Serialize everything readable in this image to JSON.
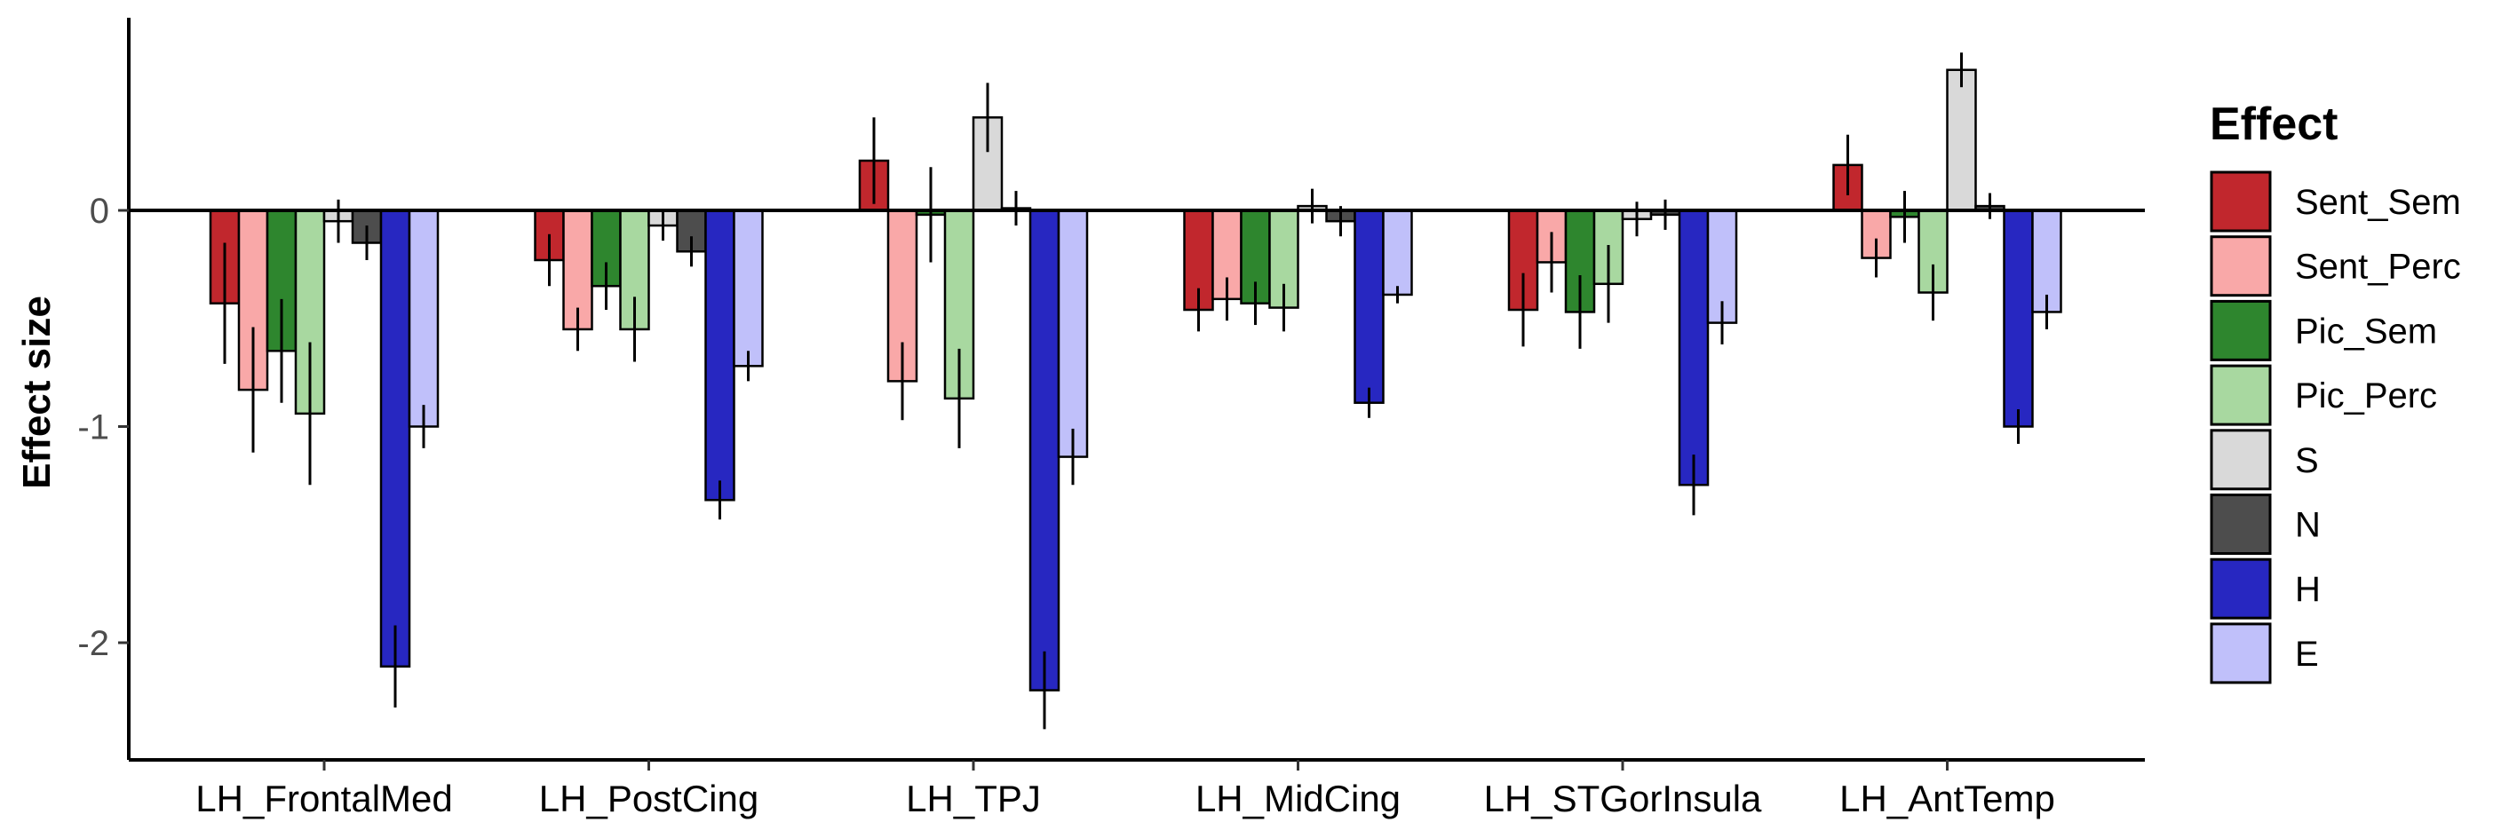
{
  "chart_data": {
    "type": "bar",
    "ylabel": "Effect size",
    "ylim": [
      -2.55,
      0.9
    ],
    "yticks": [
      0,
      -1,
      -2
    ],
    "ytick_labels": [
      "0",
      "-1",
      "-2"
    ],
    "categories": [
      "LH_FrontalMed",
      "LH_PostCing",
      "LH_TPJ",
      "LH_MidCing",
      "LH_STGorInsula",
      "LH_AntTemp"
    ],
    "legend_title": "Effect",
    "legend_position": "right",
    "grid": false,
    "series": [
      {
        "name": "Sent_Sem",
        "color": "#c1272d",
        "values": [
          -0.43,
          -0.23,
          0.23,
          -0.46,
          -0.46,
          0.21
        ],
        "errors": [
          0.28,
          0.12,
          0.2,
          0.1,
          0.17,
          0.14
        ]
      },
      {
        "name": "Sent_Perc",
        "color": "#f9a8a8",
        "values": [
          -0.83,
          -0.55,
          -0.79,
          -0.41,
          -0.24,
          -0.22
        ],
        "errors": [
          0.29,
          0.1,
          0.18,
          0.1,
          0.14,
          0.09
        ]
      },
      {
        "name": "Pic_Sem",
        "color": "#2e862e",
        "values": [
          -0.65,
          -0.35,
          -0.02,
          -0.43,
          -0.47,
          -0.03
        ],
        "errors": [
          0.24,
          0.11,
          0.22,
          0.1,
          0.17,
          0.12
        ]
      },
      {
        "name": "Pic_Perc",
        "color": "#a8d8a0",
        "values": [
          -0.94,
          -0.55,
          -0.87,
          -0.45,
          -0.34,
          -0.38
        ],
        "errors": [
          0.33,
          0.15,
          0.23,
          0.11,
          0.18,
          0.13
        ]
      },
      {
        "name": "S",
        "color": "#d9d9d9",
        "values": [
          -0.05,
          -0.07,
          0.43,
          0.02,
          -0.04,
          0.65
        ],
        "errors": [
          0.1,
          0.07,
          0.16,
          0.08,
          0.08,
          0.08
        ]
      },
      {
        "name": "N",
        "color": "#4d4d4d",
        "values": [
          -0.15,
          -0.19,
          0.01,
          -0.05,
          -0.02,
          0.02
        ],
        "errors": [
          0.08,
          0.07,
          0.08,
          0.07,
          0.07,
          0.06
        ]
      },
      {
        "name": "H",
        "color": "#2727c1",
        "values": [
          -2.11,
          -1.34,
          -2.22,
          -0.89,
          -1.27,
          -1.0
        ],
        "errors": [
          0.19,
          0.09,
          0.18,
          0.07,
          0.14,
          0.08
        ]
      },
      {
        "name": "E",
        "color": "#c0c0fa",
        "values": [
          -1.0,
          -0.72,
          -1.14,
          -0.39,
          -0.52,
          -0.47
        ],
        "errors": [
          0.1,
          0.07,
          0.13,
          0.04,
          0.1,
          0.08
        ]
      }
    ]
  }
}
